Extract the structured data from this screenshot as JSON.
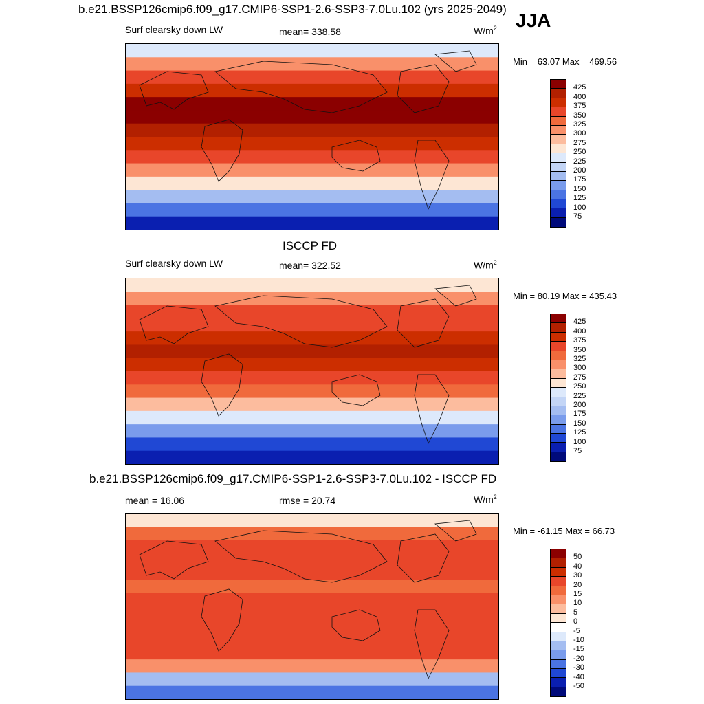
{
  "season": "JJA",
  "panels": [
    {
      "title": "b.e21.BSSP126cmip6.f09_g17.CMIP6-SSP1-2.6-SSP3-7.0Lu.102 (yrs 2025-2049)",
      "left_label": "Surf clearsky down LW",
      "center_label": "mean= 338.58",
      "units": "W/m",
      "units_sup": "2",
      "minmax": "Min =  63.07 Max = 469.56",
      "levels": [
        "425",
        "400",
        "375",
        "350",
        "325",
        "300",
        "275",
        "250",
        "225",
        "200",
        "175",
        "150",
        "125",
        "100",
        "75"
      ],
      "colors": [
        "#8b0000",
        "#b22000",
        "#cc2e00",
        "#e8462a",
        "#f06a3c",
        "#f9906a",
        "#fcbc9e",
        "#fde6d4",
        "#dde9fb",
        "#c3d5f6",
        "#a4bdf1",
        "#7a9cec",
        "#4b74e3",
        "#2048d4",
        "#0a1fb0",
        "#000a7a"
      ],
      "band_colors": [
        "#dde9fb",
        "#f9906a",
        "#e8462a",
        "#cc2e00",
        "#8b0000",
        "#8b0000",
        "#b22000",
        "#cc2e00",
        "#e8462a",
        "#f9906a",
        "#fde6d4",
        "#a4bdf1",
        "#4b74e3",
        "#0a1fb0"
      ]
    },
    {
      "title": "ISCCP FD",
      "left_label": "Surf clearsky down LW",
      "center_label": "mean= 322.52",
      "units": "W/m",
      "units_sup": "2",
      "minmax": "Min =  80.19 Max = 435.43",
      "levels": [
        "425",
        "400",
        "375",
        "350",
        "325",
        "300",
        "275",
        "250",
        "225",
        "200",
        "175",
        "150",
        "125",
        "100",
        "75"
      ],
      "colors": [
        "#8b0000",
        "#b22000",
        "#cc2e00",
        "#e8462a",
        "#f06a3c",
        "#f9906a",
        "#fcbc9e",
        "#fde6d4",
        "#dde9fb",
        "#c3d5f6",
        "#a4bdf1",
        "#7a9cec",
        "#4b74e3",
        "#2048d4",
        "#0a1fb0",
        "#000a7a"
      ],
      "band_colors": [
        "#fde6d4",
        "#f9906a",
        "#e8462a",
        "#e8462a",
        "#cc2e00",
        "#b22000",
        "#cc2e00",
        "#e8462a",
        "#f06a3c",
        "#fcbc9e",
        "#dde9fb",
        "#7a9cec",
        "#2048d4",
        "#0a1fb0"
      ]
    },
    {
      "title": "b.e21.BSSP126cmip6.f09_g17.CMIP6-SSP1-2.6-SSP3-7.0Lu.102 - ISCCP FD",
      "left_label": "mean =  16.06",
      "center_label": "rmse =  20.74",
      "units": "W/m",
      "units_sup": "2",
      "minmax": "Min = -61.15 Max =  66.73",
      "levels": [
        "50",
        "40",
        "30",
        "20",
        "15",
        "10",
        "5",
        "0",
        "-5",
        "-10",
        "-15",
        "-20",
        "-30",
        "-40",
        "-50"
      ],
      "colors": [
        "#8b0000",
        "#b22000",
        "#cc2e00",
        "#e8462a",
        "#f06a3c",
        "#f9906a",
        "#fcbc9e",
        "#fde6d4",
        "#ffffff",
        "#dde9fb",
        "#a4bdf1",
        "#7a9cec",
        "#4b74e3",
        "#2048d4",
        "#0a1fb0",
        "#000a7a"
      ],
      "band_colors": [
        "#fde6d4",
        "#f06a3c",
        "#e8462a",
        "#e8462a",
        "#e8462a",
        "#f06a3c",
        "#e8462a",
        "#e8462a",
        "#e8462a",
        "#e8462a",
        "#e8462a",
        "#f9906a",
        "#a4bdf1",
        "#4b74e3"
      ]
    }
  ]
}
